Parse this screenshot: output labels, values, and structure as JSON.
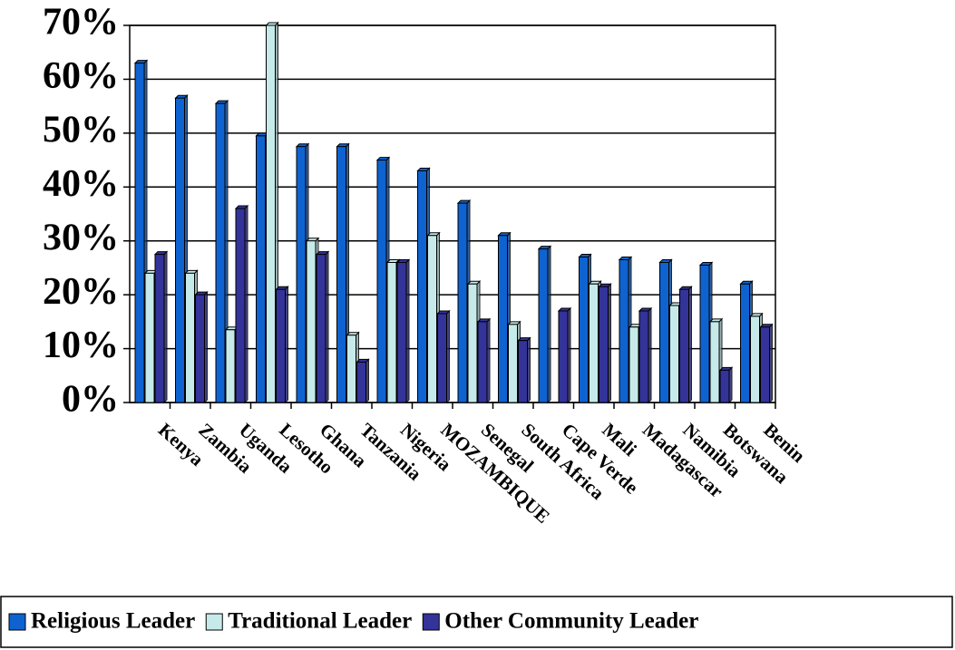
{
  "chart_data": {
    "type": "bar",
    "categories": [
      "Kenya",
      "Zambia",
      "Uganda",
      "Lesotho",
      "Ghana",
      "Tanzania",
      "Nigeria",
      "MOZAMBIQUE",
      "Senegal",
      "South Africa",
      "Cape Verde",
      "Mali",
      "Madagascar",
      "Namibia",
      "Botswana",
      "Benin"
    ],
    "series": [
      {
        "name": "Religious Leader",
        "color": "#0f63d0",
        "values": [
          63,
          56.5,
          55.5,
          49.5,
          47.5,
          47.5,
          45,
          43,
          37,
          31,
          28.5,
          27,
          26.5,
          26,
          25.5,
          22
        ]
      },
      {
        "name": "Traditional Leader",
        "color": "#c6eaea",
        "values": [
          24,
          24,
          13.5,
          70,
          30,
          12.5,
          26,
          31,
          22,
          14.5,
          0,
          22,
          14,
          18,
          15,
          16
        ]
      },
      {
        "name": "Other Community Leader",
        "color": "#33339a",
        "values": [
          27.5,
          20,
          36,
          21,
          27.5,
          7.5,
          26,
          16.5,
          15,
          11.5,
          17,
          21.5,
          17,
          21,
          6,
          14
        ]
      }
    ],
    "ylim": [
      0,
      70
    ],
    "yticks": [
      {
        "value": 0,
        "label": "0%"
      },
      {
        "value": 10,
        "label": "10%"
      },
      {
        "value": 20,
        "label": "20%"
      },
      {
        "value": 30,
        "label": "30%"
      },
      {
        "value": 40,
        "label": "40%"
      },
      {
        "value": 50,
        "label": "50%"
      },
      {
        "value": 60,
        "label": "60%"
      },
      {
        "value": 70,
        "label": "70%"
      }
    ],
    "grid": true,
    "legend": "bottom"
  }
}
